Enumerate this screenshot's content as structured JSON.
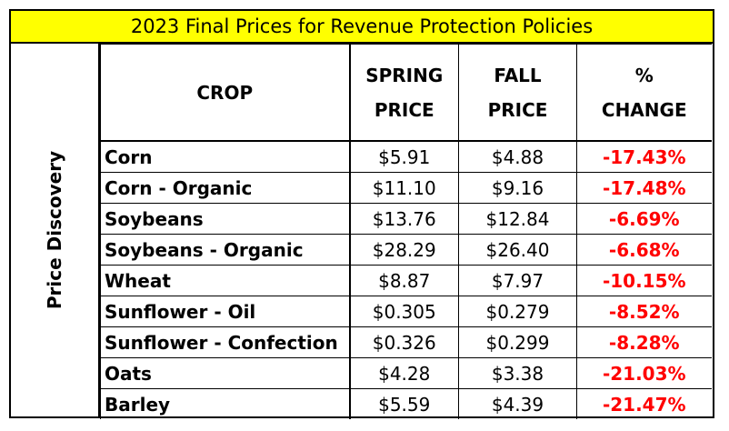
{
  "title": "2023 Final Prices for Revenue Protection Policies",
  "side_label": "Price Discovery",
  "colors": {
    "title_bg": "#ffff00",
    "negative": "#ff0000"
  },
  "chart_data": {
    "type": "table",
    "columns": [
      "CROP",
      "SPRING PRICE",
      "FALL PRICE",
      "% CHANGE"
    ],
    "header": {
      "crop": "CROP",
      "spring": [
        "SPRING",
        "PRICE"
      ],
      "fall": [
        "FALL",
        "PRICE"
      ],
      "change": [
        "%",
        "CHANGE"
      ]
    },
    "rows": [
      {
        "crop": "Corn",
        "spring": "$5.91",
        "fall": "$4.88",
        "change": "-17.43%"
      },
      {
        "crop": "Corn - Organic",
        "spring": "$11.10",
        "fall": "$9.16",
        "change": "-17.48%"
      },
      {
        "crop": "Soybeans",
        "spring": "$13.76",
        "fall": "$12.84",
        "change": "-6.69%"
      },
      {
        "crop": "Soybeans - Organic",
        "spring": "$28.29",
        "fall": "$26.40",
        "change": "-6.68%"
      },
      {
        "crop": "Wheat",
        "spring": "$8.87",
        "fall": "$7.97",
        "change": "-10.15%"
      },
      {
        "crop": "Sunflower - Oil",
        "spring": "$0.305",
        "fall": "$0.279",
        "change": "-8.52%"
      },
      {
        "crop": "Sunflower - Confection",
        "spring": "$0.326",
        "fall": "$0.299",
        "change": "-8.28%"
      },
      {
        "crop": "Oats",
        "spring": "$4.28",
        "fall": "$3.38",
        "change": "-21.03%"
      },
      {
        "crop": "Barley",
        "spring": "$5.59",
        "fall": "$4.39",
        "change": "-21.47%"
      }
    ]
  }
}
